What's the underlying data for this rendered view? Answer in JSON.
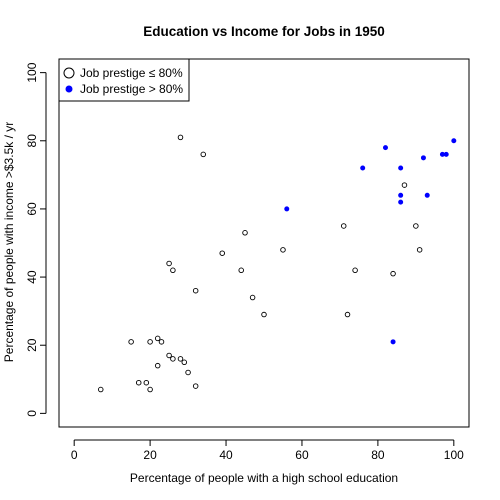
{
  "chart_data": {
    "type": "scatter",
    "title": "Education vs Income for Jobs in 1950",
    "xlabel": "Percentage of people with a high school education",
    "ylabel": "Percentage of people with income >$3.5k / yr",
    "xlim": [
      -4,
      104
    ],
    "ylim": [
      -4,
      104
    ],
    "xticks": [
      0,
      20,
      40,
      60,
      80,
      100
    ],
    "yticks": [
      0,
      20,
      40,
      60,
      80,
      100
    ],
    "grid": false,
    "legend_position": "top-left",
    "series": [
      {
        "name": "Job prestige ≤ 80%",
        "marker": "open-circle",
        "color": "#000000",
        "points": [
          [
            7,
            7
          ],
          [
            15,
            21
          ],
          [
            17,
            9
          ],
          [
            19,
            9
          ],
          [
            20,
            7
          ],
          [
            20,
            21
          ],
          [
            22,
            22
          ],
          [
            22,
            14
          ],
          [
            23,
            21
          ],
          [
            25,
            17
          ],
          [
            25,
            44
          ],
          [
            26,
            42
          ],
          [
            26,
            16
          ],
          [
            28,
            16
          ],
          [
            28,
            81
          ],
          [
            29,
            15
          ],
          [
            30,
            12
          ],
          [
            32,
            8
          ],
          [
            32,
            36
          ],
          [
            34,
            76
          ],
          [
            39,
            47
          ],
          [
            44,
            42
          ],
          [
            45,
            53
          ],
          [
            47,
            34
          ],
          [
            50,
            29
          ],
          [
            55,
            48
          ],
          [
            71,
            55
          ],
          [
            72,
            29
          ],
          [
            74,
            42
          ],
          [
            84,
            41
          ],
          [
            87,
            67
          ],
          [
            90,
            55
          ],
          [
            91,
            48
          ]
        ]
      },
      {
        "name": "Job prestige > 80%",
        "marker": "filled-circle",
        "color": "#0000ff",
        "points": [
          [
            56,
            60
          ],
          [
            76,
            72
          ],
          [
            82,
            78
          ],
          [
            84,
            21
          ],
          [
            86,
            72
          ],
          [
            86,
            64
          ],
          [
            86,
            62
          ],
          [
            92,
            75
          ],
          [
            93,
            64
          ],
          [
            97,
            76
          ],
          [
            98,
            76
          ],
          [
            100,
            80
          ]
        ]
      }
    ]
  }
}
